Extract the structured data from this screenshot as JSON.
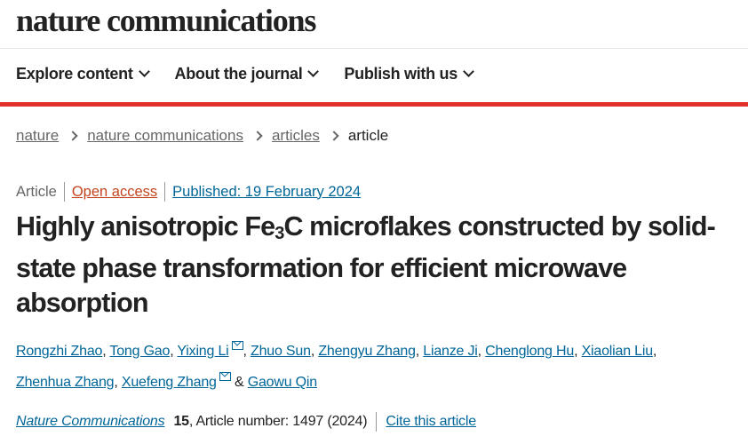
{
  "header": {
    "logo": "nature communications"
  },
  "nav": [
    {
      "label": "Explore content"
    },
    {
      "label": "About the journal"
    },
    {
      "label": "Publish with us"
    }
  ],
  "breadcrumb": [
    {
      "label": "nature"
    },
    {
      "label": "nature communications"
    },
    {
      "label": "articles"
    },
    {
      "label": "article"
    }
  ],
  "meta": {
    "type": "Article",
    "access": "Open access",
    "published": "Published: 19 February 2024"
  },
  "title": {
    "part1": "Highly anisotropic Fe",
    "sub": "3",
    "part2": "C microflakes constructed by solid-state phase transformation for efficient microwave absorption"
  },
  "authors": [
    {
      "name": "Rongzhi Zhao"
    },
    {
      "name": "Tong Gao"
    },
    {
      "name": "Yixing Li",
      "email": true
    },
    {
      "name": "Zhuo Sun"
    },
    {
      "name": "Zhengyu Zhang"
    },
    {
      "name": "Lianze Ji"
    },
    {
      "name": "Chenglong Hu"
    },
    {
      "name": "Xiaolian Liu"
    },
    {
      "name": "Zhenhua Zhang"
    },
    {
      "name": "Xuefeng Zhang",
      "email": true
    },
    {
      "name": "Gaowu Qin"
    }
  ],
  "authors_amp": "&",
  "citation": {
    "journal": "Nature Communications",
    "volume": "15",
    "rest": ", Article number: 1497 (2024)",
    "cite_label": "Cite this article"
  },
  "colors": {
    "accent_red": "#e0322a",
    "link": "#006699",
    "open_access": "#c4441c"
  }
}
